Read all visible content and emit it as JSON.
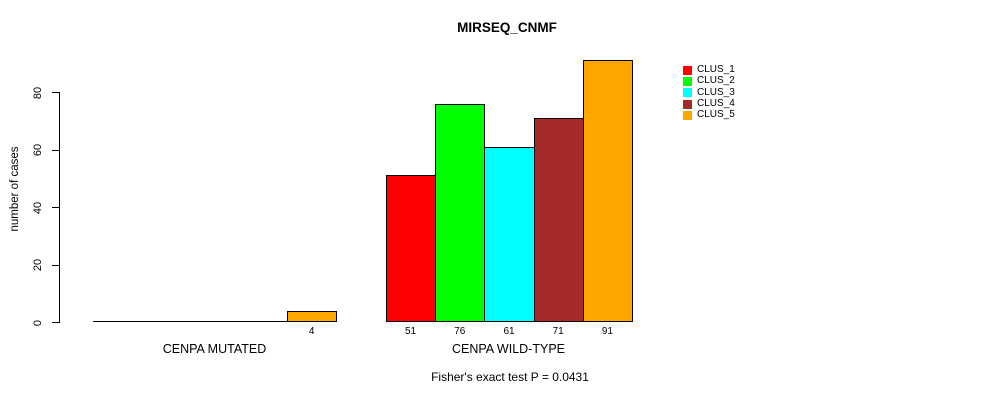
{
  "chart_data": {
    "type": "bar",
    "title": "MIRSEQ_CNMF",
    "ylabel": "number of cases",
    "subtitle": "Fisher's exact test P = 0.0431",
    "categories": [
      "CENPA MUTATED",
      "CENPA WILD-TYPE"
    ],
    "yticks": [
      0,
      20,
      40,
      60,
      80
    ],
    "ylim": [
      0,
      91
    ],
    "grid": false,
    "legend_position": "top-right",
    "series": [
      {
        "name": "CLUS_1",
        "color": "#FF0000",
        "values": [
          0,
          51
        ]
      },
      {
        "name": "CLUS_2",
        "color": "#00FF00",
        "values": [
          0,
          76
        ]
      },
      {
        "name": "CLUS_3",
        "color": "#00FFFF",
        "values": [
          0,
          61
        ]
      },
      {
        "name": "CLUS_4",
        "color": "#A52A2A",
        "values": [
          0,
          71
        ]
      },
      {
        "name": "CLUS_5",
        "color": "#FFA500",
        "values": [
          4,
          91
        ]
      }
    ],
    "bar_value_labels": [
      [
        null,
        null,
        null,
        null,
        4
      ],
      [
        51,
        76,
        61,
        71,
        91
      ]
    ]
  },
  "colors": {
    "background": "#FFFFFF",
    "axis": "#000000",
    "text": "#000000"
  }
}
